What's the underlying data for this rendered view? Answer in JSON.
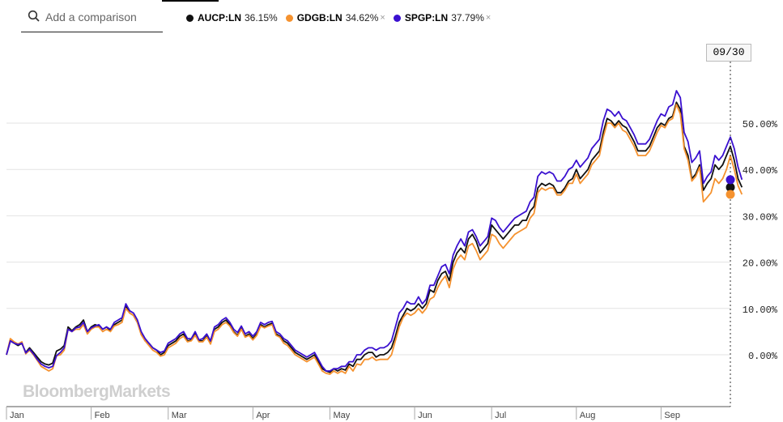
{
  "search": {
    "placeholder": "Add a comparison",
    "icon": "search-icon"
  },
  "legend": [
    {
      "ticker": "AUCP:LN",
      "change": "36.15%",
      "color": "#111111",
      "removable": false
    },
    {
      "ticker": "GDGB:LN",
      "change": "34.62%",
      "color": "#f5922f",
      "removable": true
    },
    {
      "ticker": "SPGP:LN",
      "change": "37.79%",
      "color": "#3a10d0",
      "removable": true
    }
  ],
  "cursor_date": "09/30",
  "watermark": "BloombergMarkets",
  "chart_data": {
    "type": "line",
    "title": "",
    "xlabel": "",
    "ylabel": "",
    "categories_months": [
      "Jan",
      "Feb",
      "Mar",
      "Apr",
      "May",
      "Jun",
      "Jul",
      "Aug",
      "Sep"
    ],
    "y_ticks": [
      "50.00%",
      "40.00%",
      "30.00%",
      "20.00%",
      "10.00%",
      "0.00%"
    ],
    "y_tick_values": [
      50,
      40,
      30,
      20,
      10,
      0
    ],
    "ylim": [
      -12,
      62
    ],
    "x_range": [
      0,
      188
    ],
    "month_starts": [
      0,
      22,
      42,
      64,
      84,
      106,
      126,
      148,
      170
    ],
    "series": [
      {
        "name": "AUCP:LN",
        "color": "#111111",
        "last_value": 36.15,
        "values": [
          0,
          3,
          2.5,
          2,
          2.5,
          0.5,
          1.5,
          0.5,
          -0.5,
          -1.5,
          -2,
          -2.2,
          -1.8,
          0.8,
          1.2,
          2,
          6,
          5.2,
          6,
          6.5,
          7.5,
          5,
          6,
          6.5,
          6.2,
          5.5,
          6,
          5.2,
          6.5,
          7,
          7.5,
          10.5,
          9,
          8.5,
          7,
          4.5,
          3,
          2.5,
          1.5,
          1,
          0,
          0.5,
          2,
          2.5,
          3,
          4,
          4.5,
          3,
          3.2,
          4.5,
          3,
          3,
          4,
          2.5,
          5.5,
          6,
          7,
          7.5,
          6.5,
          5,
          4.2,
          5.8,
          4,
          4.5,
          3.5,
          4.5,
          6.5,
          6,
          6.5,
          6.8,
          4.5,
          4,
          3,
          2.5,
          1.5,
          0.5,
          0,
          -0.5,
          -1,
          -0.5,
          0,
          -1.5,
          -3,
          -3.5,
          -3.8,
          -3,
          -3.5,
          -3,
          -3.3,
          -2,
          -2.5,
          -1,
          -1,
          0,
          0.5,
          0.5,
          -0.5,
          0,
          0,
          0.5,
          1.5,
          4,
          7,
          8.5,
          10,
          9.5,
          10,
          11,
          10,
          11,
          14,
          13.5,
          16,
          17.5,
          18,
          16,
          20,
          22,
          23,
          22,
          25,
          26,
          24.5,
          22,
          23,
          24,
          28,
          27,
          26,
          25,
          26,
          27,
          28,
          28,
          29,
          29,
          31,
          32,
          36,
          37,
          36.5,
          37,
          36.5,
          35,
          35,
          36,
          37.5,
          38,
          40,
          38,
          39,
          40,
          42,
          43,
          44,
          48,
          51,
          50.5,
          49.5,
          50.5,
          49.5,
          49,
          47.5,
          46,
          44,
          44,
          44,
          45,
          47,
          49,
          50,
          49.5,
          51,
          51.5,
          54.5,
          53,
          45,
          43,
          38,
          39,
          41,
          35.5,
          37,
          38,
          41,
          40,
          41,
          43,
          45,
          42,
          38,
          36.15
        ]
      },
      {
        "name": "GDGB:LN",
        "color": "#f5922f",
        "last_value": 34.62,
        "values": [
          0,
          3.5,
          2.8,
          2.3,
          2.8,
          0.2,
          1,
          0,
          -1.2,
          -2.5,
          -3,
          -3.5,
          -3,
          -0.2,
          0,
          1,
          5.5,
          5,
          5.5,
          5.5,
          6.5,
          4.5,
          5.5,
          6,
          6,
          5,
          5.5,
          5,
          6.2,
          6.5,
          7,
          10,
          9,
          8.5,
          7,
          4.3,
          3,
          2,
          1,
          0.5,
          -0.3,
          0,
          1.5,
          2,
          2.5,
          3.5,
          4,
          2.8,
          3,
          4.2,
          2.8,
          2.8,
          3.8,
          2.3,
          5,
          5.5,
          6.5,
          7,
          6.2,
          4.8,
          4,
          5.5,
          3.8,
          4.2,
          3.2,
          4.2,
          6.2,
          5.8,
          6.2,
          6.5,
          4.2,
          3.8,
          2.5,
          2,
          1,
          0,
          -0.5,
          -1,
          -1.5,
          -1,
          -0.5,
          -2,
          -3.5,
          -4,
          -4.2,
          -3.5,
          -4,
          -3.5,
          -4,
          -2.5,
          -3.5,
          -2,
          -2.2,
          -1,
          -1,
          -0.5,
          -1.2,
          -1,
          -1,
          -1,
          0,
          3,
          6,
          8,
          9,
          8.5,
          9,
          10,
          9,
          10,
          12,
          12.5,
          14.5,
          16,
          17,
          14.5,
          18.5,
          20.5,
          21.5,
          20.5,
          23.5,
          24,
          22.5,
          20.5,
          21.5,
          22.5,
          26,
          25.5,
          24,
          23,
          24,
          25,
          26,
          26.5,
          27,
          27.5,
          29.5,
          30.5,
          35,
          36,
          35.5,
          36,
          36,
          34.5,
          34.5,
          35.5,
          37,
          37,
          39,
          37,
          38,
          39,
          41,
          42,
          43,
          47,
          50,
          50,
          49,
          50,
          48.5,
          48,
          46.5,
          45,
          43,
          43,
          43,
          44,
          46,
          48,
          49.5,
          49,
          50.5,
          51,
          54,
          52,
          44.5,
          42,
          37.5,
          38.5,
          40.5,
          33,
          34,
          35,
          38,
          37,
          38,
          40,
          43,
          40,
          36.5,
          34.62
        ]
      },
      {
        "name": "SPGP:LN",
        "color": "#3a10d0",
        "last_value": 37.79,
        "values": [
          0,
          3,
          2.5,
          2.2,
          2.5,
          0.4,
          1.2,
          0.2,
          -1,
          -2,
          -2.5,
          -2.8,
          -2.5,
          -0.2,
          0.5,
          1.5,
          5.5,
          5,
          5.8,
          6,
          7,
          5,
          5.8,
          6.2,
          6.5,
          5.5,
          6,
          5.5,
          7,
          7.5,
          8,
          11,
          9.5,
          9,
          7.5,
          5,
          3.5,
          2.5,
          1.5,
          1,
          0.5,
          0.8,
          2.5,
          3,
          3.5,
          4.5,
          5,
          3.5,
          3.5,
          5,
          3.2,
          3.5,
          4.5,
          3,
          6,
          6.5,
          7.5,
          8,
          7,
          5.5,
          4.8,
          6.2,
          4.5,
          5,
          4,
          5,
          7,
          6.5,
          7,
          7.2,
          5,
          4.5,
          3.5,
          3,
          2,
          1,
          0.5,
          0,
          -0.5,
          0,
          0.5,
          -1,
          -2.5,
          -3.5,
          -3.5,
          -3,
          -3,
          -2.5,
          -2.5,
          -1.5,
          -1.5,
          0,
          0,
          1,
          1.5,
          1.5,
          1,
          1.5,
          1.5,
          2,
          3,
          6,
          9,
          10,
          11.5,
          11,
          11,
          12.5,
          11,
          12,
          15,
          15,
          17,
          19,
          19.5,
          17.5,
          21.5,
          23.5,
          25,
          23.5,
          26.5,
          27,
          25.5,
          23.5,
          24.5,
          25.5,
          29.5,
          29,
          27.5,
          26.5,
          27.5,
          28.5,
          29.5,
          30,
          30.5,
          31,
          33,
          34,
          38.5,
          39.5,
          39,
          39.5,
          39,
          37.5,
          37.5,
          38.5,
          40,
          40.5,
          42,
          40.5,
          41.5,
          42.5,
          44.5,
          45.5,
          46.5,
          50.5,
          53,
          52.5,
          51.5,
          52.5,
          51,
          50.5,
          49,
          47.5,
          45.5,
          45.5,
          45.5,
          46.5,
          48.5,
          50.5,
          52,
          51.5,
          53.5,
          54,
          57,
          55.5,
          48,
          46,
          41.5,
          42.5,
          44,
          37,
          38.5,
          39.5,
          43,
          42,
          43,
          45,
          47,
          44.5,
          40.5,
          37.79
        ]
      }
    ]
  }
}
